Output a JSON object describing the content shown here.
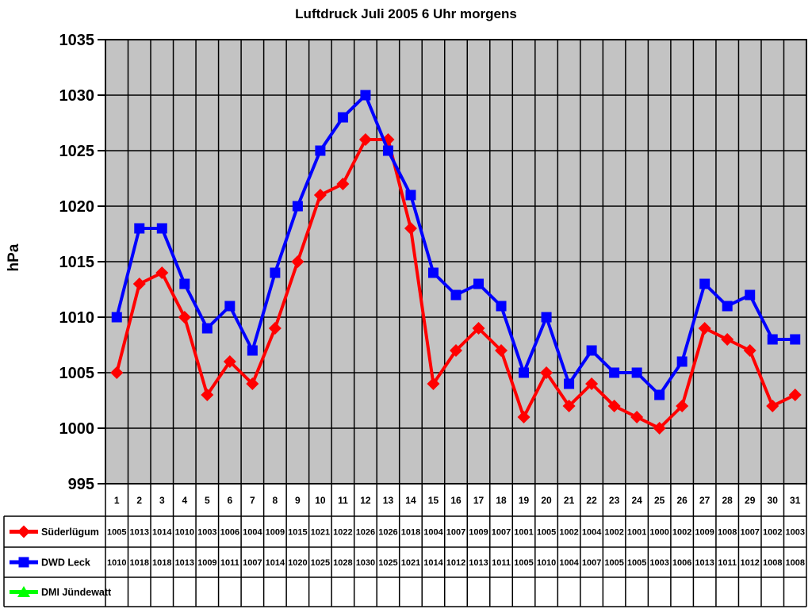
{
  "chart_data": {
    "type": "line",
    "title": "Luftdruck Juli 2005 6 Uhr morgens",
    "ylabel": "hPa",
    "ylim": [
      995,
      1035
    ],
    "y_tick_step": 5,
    "y_ticks": [
      995,
      1000,
      1005,
      1010,
      1015,
      1020,
      1025,
      1030,
      1035
    ],
    "grid": true,
    "plot_bg_color": "#C3C3C3",
    "gridline_color": "#000000",
    "legend_position": "bottom-table",
    "categories": [
      "1",
      "2",
      "3",
      "4",
      "5",
      "6",
      "7",
      "8",
      "9",
      "10",
      "11",
      "12",
      "13",
      "14",
      "15",
      "16",
      "17",
      "18",
      "19",
      "20",
      "21",
      "22",
      "23",
      "24",
      "25",
      "26",
      "27",
      "28",
      "29",
      "30",
      "31"
    ],
    "series": [
      {
        "name": "Süderlügum",
        "color": "#FF0000",
        "marker": "diamond",
        "values": [
          1005,
          1013,
          1014,
          1010,
          1003,
          1006,
          1004,
          1009,
          1015,
          1021,
          1022,
          1026,
          1026,
          1018,
          1004,
          1007,
          1009,
          1007,
          1001,
          1005,
          1002,
          1004,
          1002,
          1001,
          1000,
          1002,
          1009,
          1008,
          1007,
          1002,
          1003
        ]
      },
      {
        "name": "DWD Leck",
        "color": "#0000FF",
        "marker": "square",
        "values": [
          1010,
          1018,
          1018,
          1013,
          1009,
          1011,
          1007,
          1014,
          1020,
          1025,
          1028,
          1030,
          1025,
          1021,
          1014,
          1012,
          1013,
          1011,
          1005,
          1010,
          1004,
          1007,
          1005,
          1005,
          1003,
          1006,
          1013,
          1011,
          1012,
          1008,
          1008
        ]
      },
      {
        "name": "DMI Jündewatt",
        "color": "#00FF00",
        "marker": "triangle",
        "values": []
      }
    ]
  }
}
